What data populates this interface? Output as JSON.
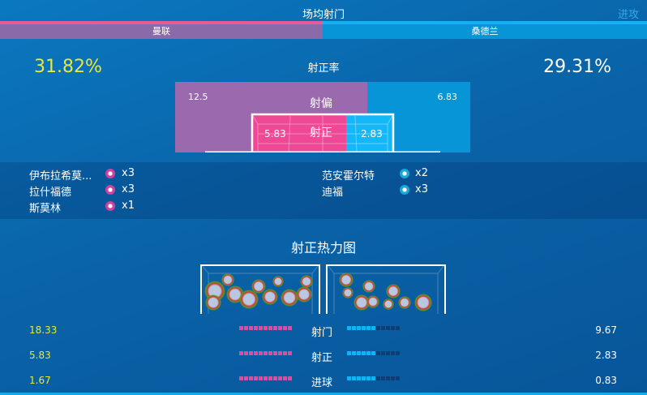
{
  "header": {
    "title": "场均射门",
    "link": "进攻"
  },
  "teams": {
    "home": "曼联",
    "away": "桑德兰"
  },
  "accuracy": {
    "label": "射正率",
    "home": "31.82%",
    "away": "29.31%"
  },
  "shot_chart": {
    "off_label": "射偏",
    "on_label": "射正",
    "home_off": "12.5",
    "away_off": "6.83",
    "home_on": "5.83",
    "away_on": "2.83"
  },
  "scorers": {
    "home": [
      {
        "name": "伊布拉希莫...",
        "count": "x3"
      },
      {
        "name": "拉什福德",
        "count": "x3"
      },
      {
        "name": "斯莫林",
        "count": "x1"
      }
    ],
    "away": [
      {
        "name": "范安霍尔特",
        "count": "x2"
      },
      {
        "name": "迪福",
        "count": "x3"
      }
    ]
  },
  "heatmap": {
    "title": "射正热力图"
  },
  "stats": [
    {
      "label": "射门",
      "home": "18.33",
      "away": "9.67",
      "home_segments": 11,
      "away_segments": 6
    },
    {
      "label": "射正",
      "home": "5.83",
      "away": "2.83",
      "home_segments": 11,
      "away_segments": 6
    },
    {
      "label": "进球",
      "home": "1.67",
      "away": "0.83",
      "home_segments": 11,
      "away_segments": 6
    }
  ],
  "colors": {
    "home": "#e8489a",
    "home_tab": "#8a6aa8",
    "away": "#14b2f5",
    "highlight": "#e8e83a"
  }
}
